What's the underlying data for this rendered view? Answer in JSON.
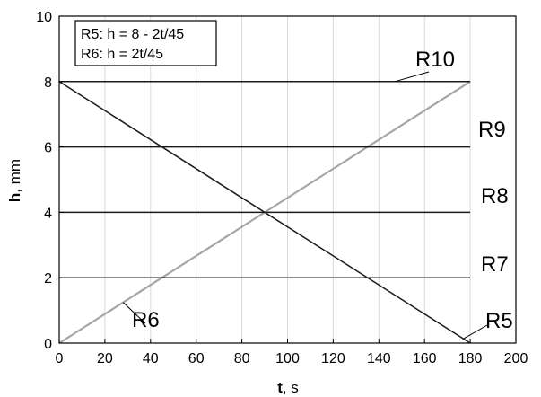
{
  "chart_data": {
    "type": "line",
    "xlabel_var": "t",
    "xlabel_unit": ", s",
    "ylabel_var": "h",
    "ylabel_unit": ", mm",
    "xlim": [
      0,
      200
    ],
    "ylim": [
      0,
      10
    ],
    "xticks": [
      0,
      20,
      40,
      60,
      80,
      100,
      120,
      140,
      160,
      180,
      200
    ],
    "yticks": [
      0,
      2,
      4,
      6,
      8,
      10
    ],
    "grid": true,
    "legend_lines": [
      "R5: h = 8 - 2t/45",
      "R6: h = 2t/45"
    ],
    "series": [
      {
        "name": "R5",
        "color": "#1a1a1a",
        "x": [
          0,
          180
        ],
        "y": [
          8,
          0
        ]
      },
      {
        "name": "R6",
        "color": "#a6a6a6",
        "x": [
          0,
          180
        ],
        "y": [
          0,
          8
        ]
      },
      {
        "name": "R7",
        "color": "#1a1a1a",
        "x": [
          0,
          180
        ],
        "y": [
          2,
          2
        ]
      },
      {
        "name": "R8",
        "color": "#1a1a1a",
        "x": [
          0,
          180
        ],
        "y": [
          4,
          4
        ]
      },
      {
        "name": "R9",
        "color": "#1a1a1a",
        "x": [
          0,
          180
        ],
        "y": [
          6,
          6
        ]
      },
      {
        "name": "R10",
        "color": "#1a1a1a",
        "x": [
          0,
          180
        ],
        "y": [
          8,
          8
        ]
      }
    ]
  }
}
